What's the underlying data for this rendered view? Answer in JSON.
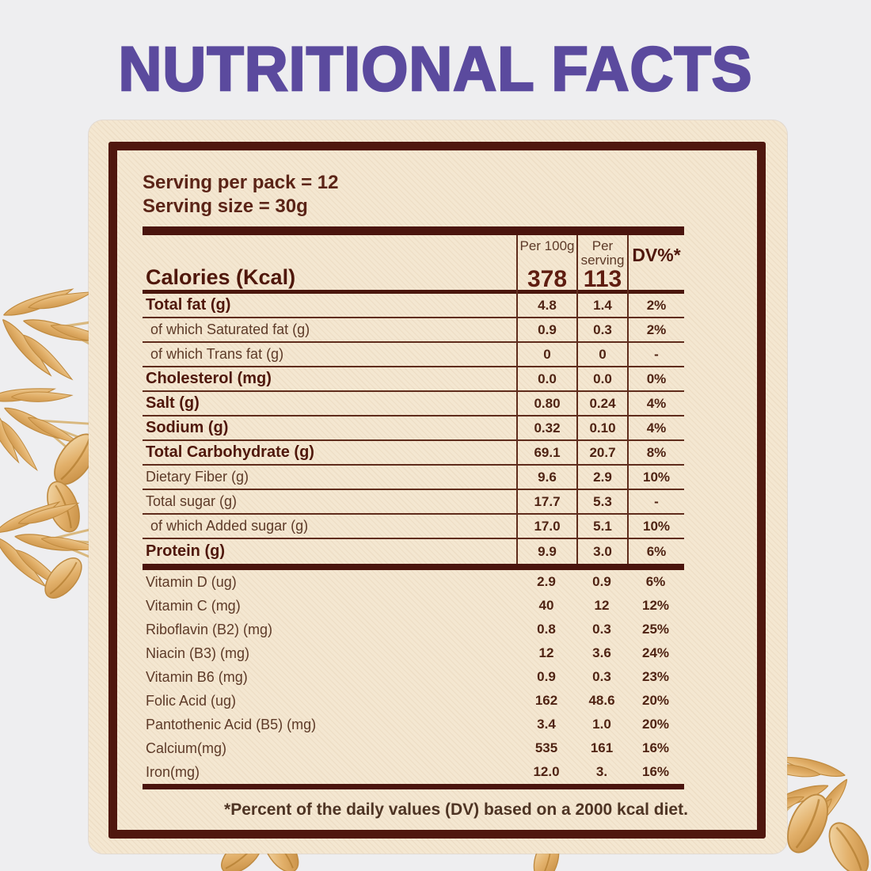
{
  "page": {
    "title": "NUTRITIONAL FACTS",
    "colors": {
      "title_purple": "#5b4a9e",
      "card_cream": "#f4e7d1",
      "border_maroon": "#4f170e",
      "text_brown": "#4f2313",
      "page_background": "#eeeef0"
    }
  },
  "serving": {
    "per_pack": "Serving per pack = 12",
    "size": "Serving size = 30g"
  },
  "table": {
    "columns": [
      "Per 100g",
      "Per serving",
      "DV%*"
    ],
    "calories": {
      "label": "Calories (Kcal)",
      "per_100g": "378",
      "per_serving": "113",
      "dv": ""
    },
    "rows": [
      {
        "label": "Total fat (g)",
        "bold": true,
        "per_100g": "4.8",
        "per_serving": "1.4",
        "dv": "2%"
      },
      {
        "label": "of which Saturated fat (g)",
        "bold": false,
        "per_100g": "0.9",
        "per_serving": "0.3",
        "dv": "2%"
      },
      {
        "label": "of which Trans fat (g)",
        "bold": false,
        "per_100g": "0",
        "per_serving": "0",
        "dv": "-"
      },
      {
        "label": "Cholesterol (mg)",
        "bold": true,
        "per_100g": "0.0",
        "per_serving": "0.0",
        "dv": "0%"
      },
      {
        "label": "Salt (g)",
        "bold": true,
        "per_100g": "0.80",
        "per_serving": "0.24",
        "dv": "4%"
      },
      {
        "label": "Sodium (g)",
        "bold": true,
        "per_100g": "0.32",
        "per_serving": "0.10",
        "dv": "4%"
      },
      {
        "label": "Total Carbohydrate (g)",
        "bold": true,
        "per_100g": "69.1",
        "per_serving": "20.7",
        "dv": "8%"
      },
      {
        "label": "Dietary Fiber (g)",
        "bold": false,
        "per_100g": "9.6",
        "per_serving": "2.9",
        "dv": "10%"
      },
      {
        "label": "Total sugar (g)",
        "bold": false,
        "per_100g": "17.7",
        "per_serving": "5.3",
        "dv": "-"
      },
      {
        "label": "of which Added sugar (g)",
        "bold": false,
        "per_100g": "17.0",
        "per_serving": "5.1",
        "dv": "10%"
      },
      {
        "label": "Protein (g)",
        "bold": true,
        "per_100g": "9.9",
        "per_serving": "3.0",
        "dv": "6%"
      }
    ],
    "micronutrients": [
      {
        "label": "Vitamin D (ug)",
        "per_100g": "2.9",
        "per_serving": "0.9",
        "dv": "6%"
      },
      {
        "label": "Vitamin C (mg)",
        "per_100g": "40",
        "per_serving": "12",
        "dv": "12%"
      },
      {
        "label": "Riboflavin (B2) (mg)",
        "per_100g": "0.8",
        "per_serving": "0.3",
        "dv": "25%"
      },
      {
        "label": "Niacin (B3) (mg)",
        "per_100g": "12",
        "per_serving": "3.6",
        "dv": "24%"
      },
      {
        "label": "Vitamin B6 (mg)",
        "per_100g": "0.9",
        "per_serving": "0.3",
        "dv": "23%"
      },
      {
        "label": "Folic Acid (ug)",
        "per_100g": "162",
        "per_serving": "48.6",
        "dv": "20%"
      },
      {
        "label": "Pantothenic Acid (B5) (mg)",
        "per_100g": "3.4",
        "per_serving": "1.0",
        "dv": "20%"
      },
      {
        "label": "Calcium(mg)",
        "per_100g": "535",
        "per_serving": "161",
        "dv": "16%"
      },
      {
        "label": "Iron(mg)",
        "per_100g": "12.0",
        "per_serving": "3.",
        "dv": "16%"
      }
    ]
  },
  "footnote": "*Percent of the daily values (DV) based on a 2000 kcal diet."
}
